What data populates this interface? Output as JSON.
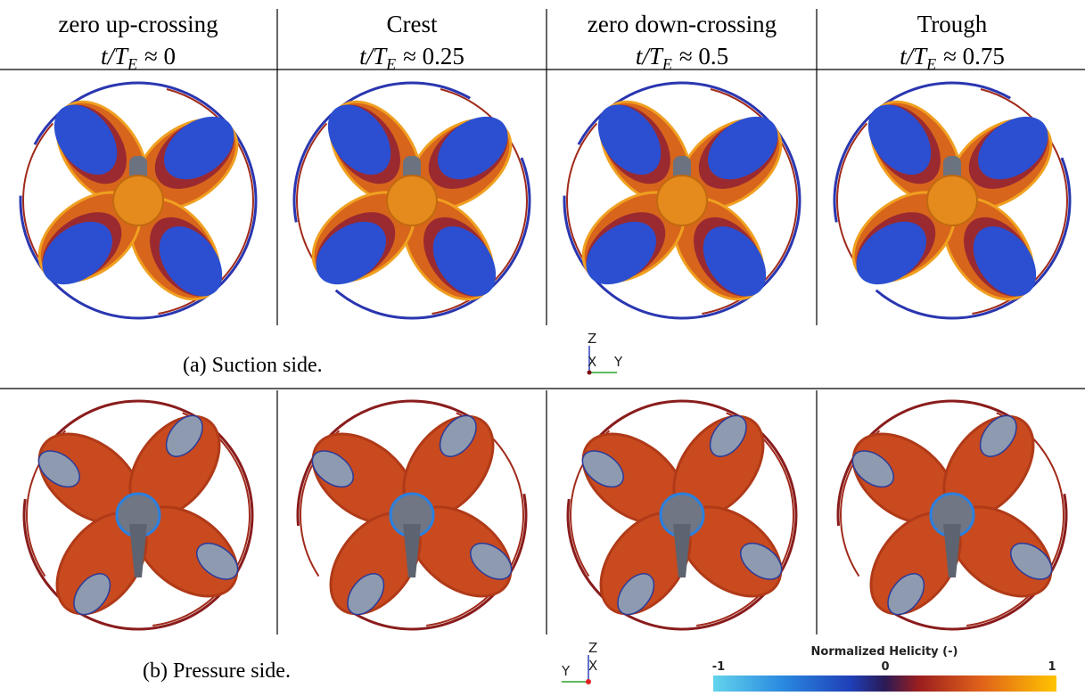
{
  "header": {
    "time_symbol": "t/T",
    "time_subscript": "E",
    "columns": [
      {
        "label": "zero up-crossing",
        "time": "≈ 0"
      },
      {
        "label": "Crest",
        "time": "≈ 0.25"
      },
      {
        "label": "zero down-crossing",
        "time": "≈ 0.5"
      },
      {
        "label": "Trough",
        "time": "≈ 0.75"
      }
    ]
  },
  "rows": [
    {
      "caption": "(a) Suction side.",
      "axes": {
        "up": "Z",
        "center": "X",
        "side": "Y"
      }
    },
    {
      "caption": "(b) Pressure side.",
      "axes": {
        "up": "Z",
        "center": "X",
        "side": "Y"
      }
    }
  ],
  "colorbar": {
    "title": "Normalized Helicity (-)",
    "range": [
      -1,
      1
    ],
    "ticks": [
      -1,
      0,
      1
    ]
  }
}
